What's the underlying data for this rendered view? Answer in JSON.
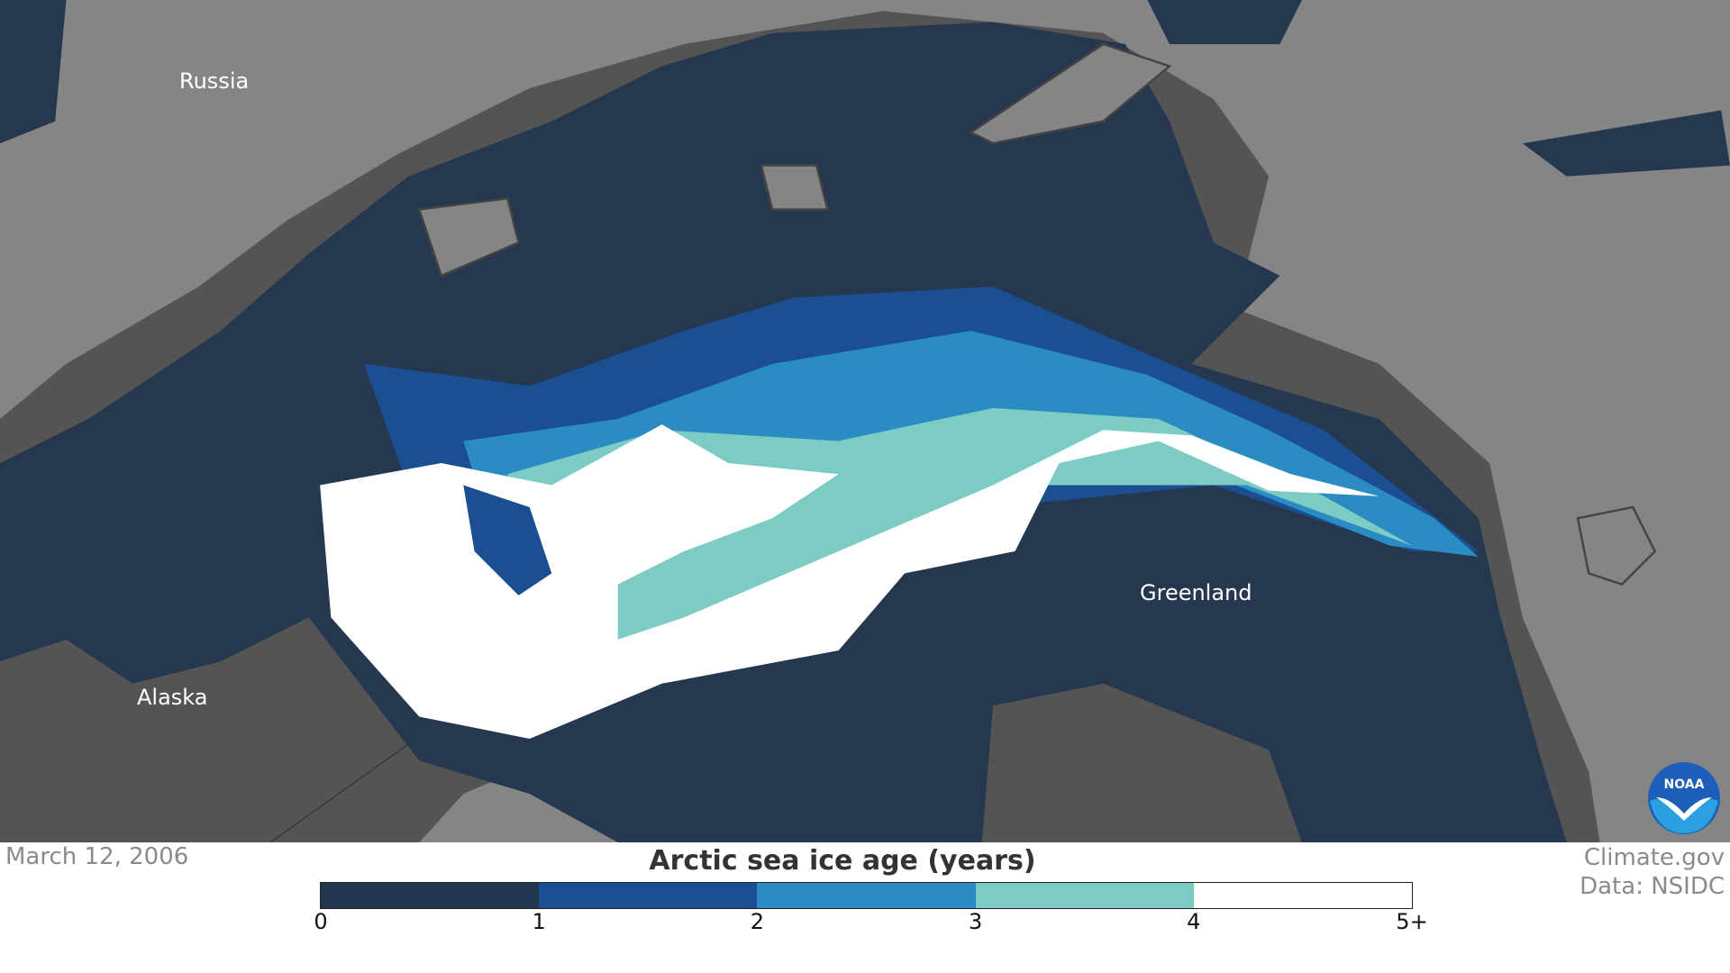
{
  "labels": {
    "russia": "Russia",
    "alaska": "Alaska",
    "greenland": "Greenland"
  },
  "date": "March 12, 2006",
  "legend": {
    "title": "Arctic sea ice age (years)",
    "ticks": [
      "0",
      "1",
      "2",
      "3",
      "4",
      "5+"
    ],
    "bins": [
      {
        "range": "0-1",
        "color": "#22364f"
      },
      {
        "range": "1-2",
        "color": "#1b4f91"
      },
      {
        "range": "2-3",
        "color": "#2b8cc4"
      },
      {
        "range": "3-4",
        "color": "#7dccc4"
      },
      {
        "range": "4-5+",
        "color": "#ffffff"
      }
    ]
  },
  "credit": {
    "line1": "Climate.gov",
    "line2": "Data: NSIDC"
  },
  "logo": "NOAA",
  "colors": {
    "land": "#858585",
    "coast": "#545454",
    "ocean": "#253850"
  }
}
